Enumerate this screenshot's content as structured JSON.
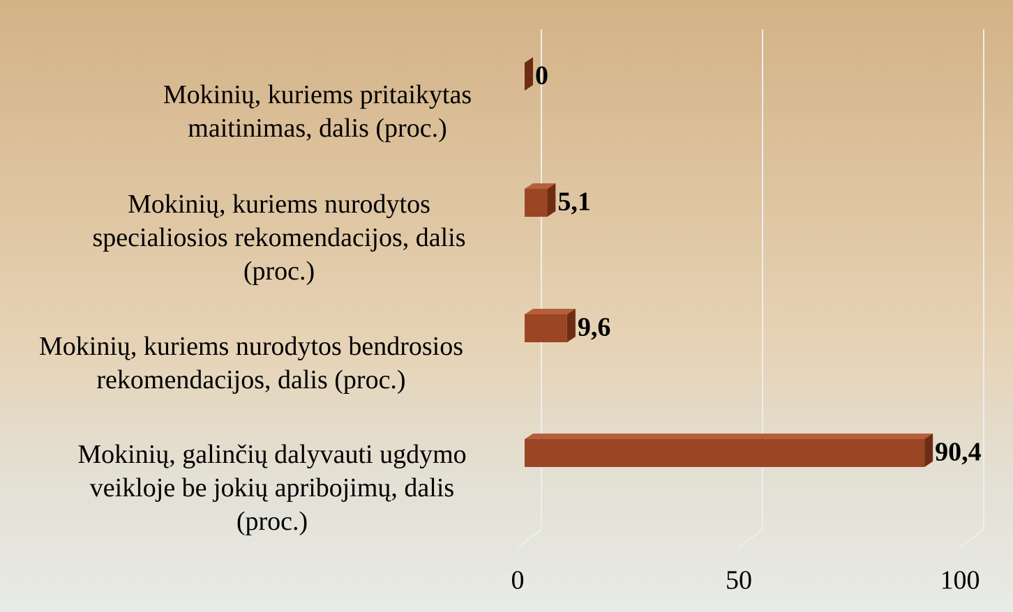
{
  "chart_data": {
    "type": "bar",
    "orientation": "horizontal",
    "categories": [
      "Mokinių, kuriems pritaikytas maitinimas, dalis (proc.)",
      "Mokinių, kuriems nurodytos specialiosios rekomendacijos, dalis (proc.)",
      "Mokinių, kuriems nurodytos bendrosios rekomendacijos, dalis (proc.)",
      "Mokinių, galinčių dalyvauti ugdymo veikloje be jokių apribojimų, dalis (proc.)"
    ],
    "values": [
      0,
      5.1,
      9.6,
      90.4
    ],
    "value_labels": [
      "0",
      "5,1",
      "9,6",
      "90,4"
    ],
    "color": "#9a4524",
    "xlim": [
      0,
      100
    ],
    "xticks": [
      0,
      50,
      100
    ],
    "grid": true
  }
}
